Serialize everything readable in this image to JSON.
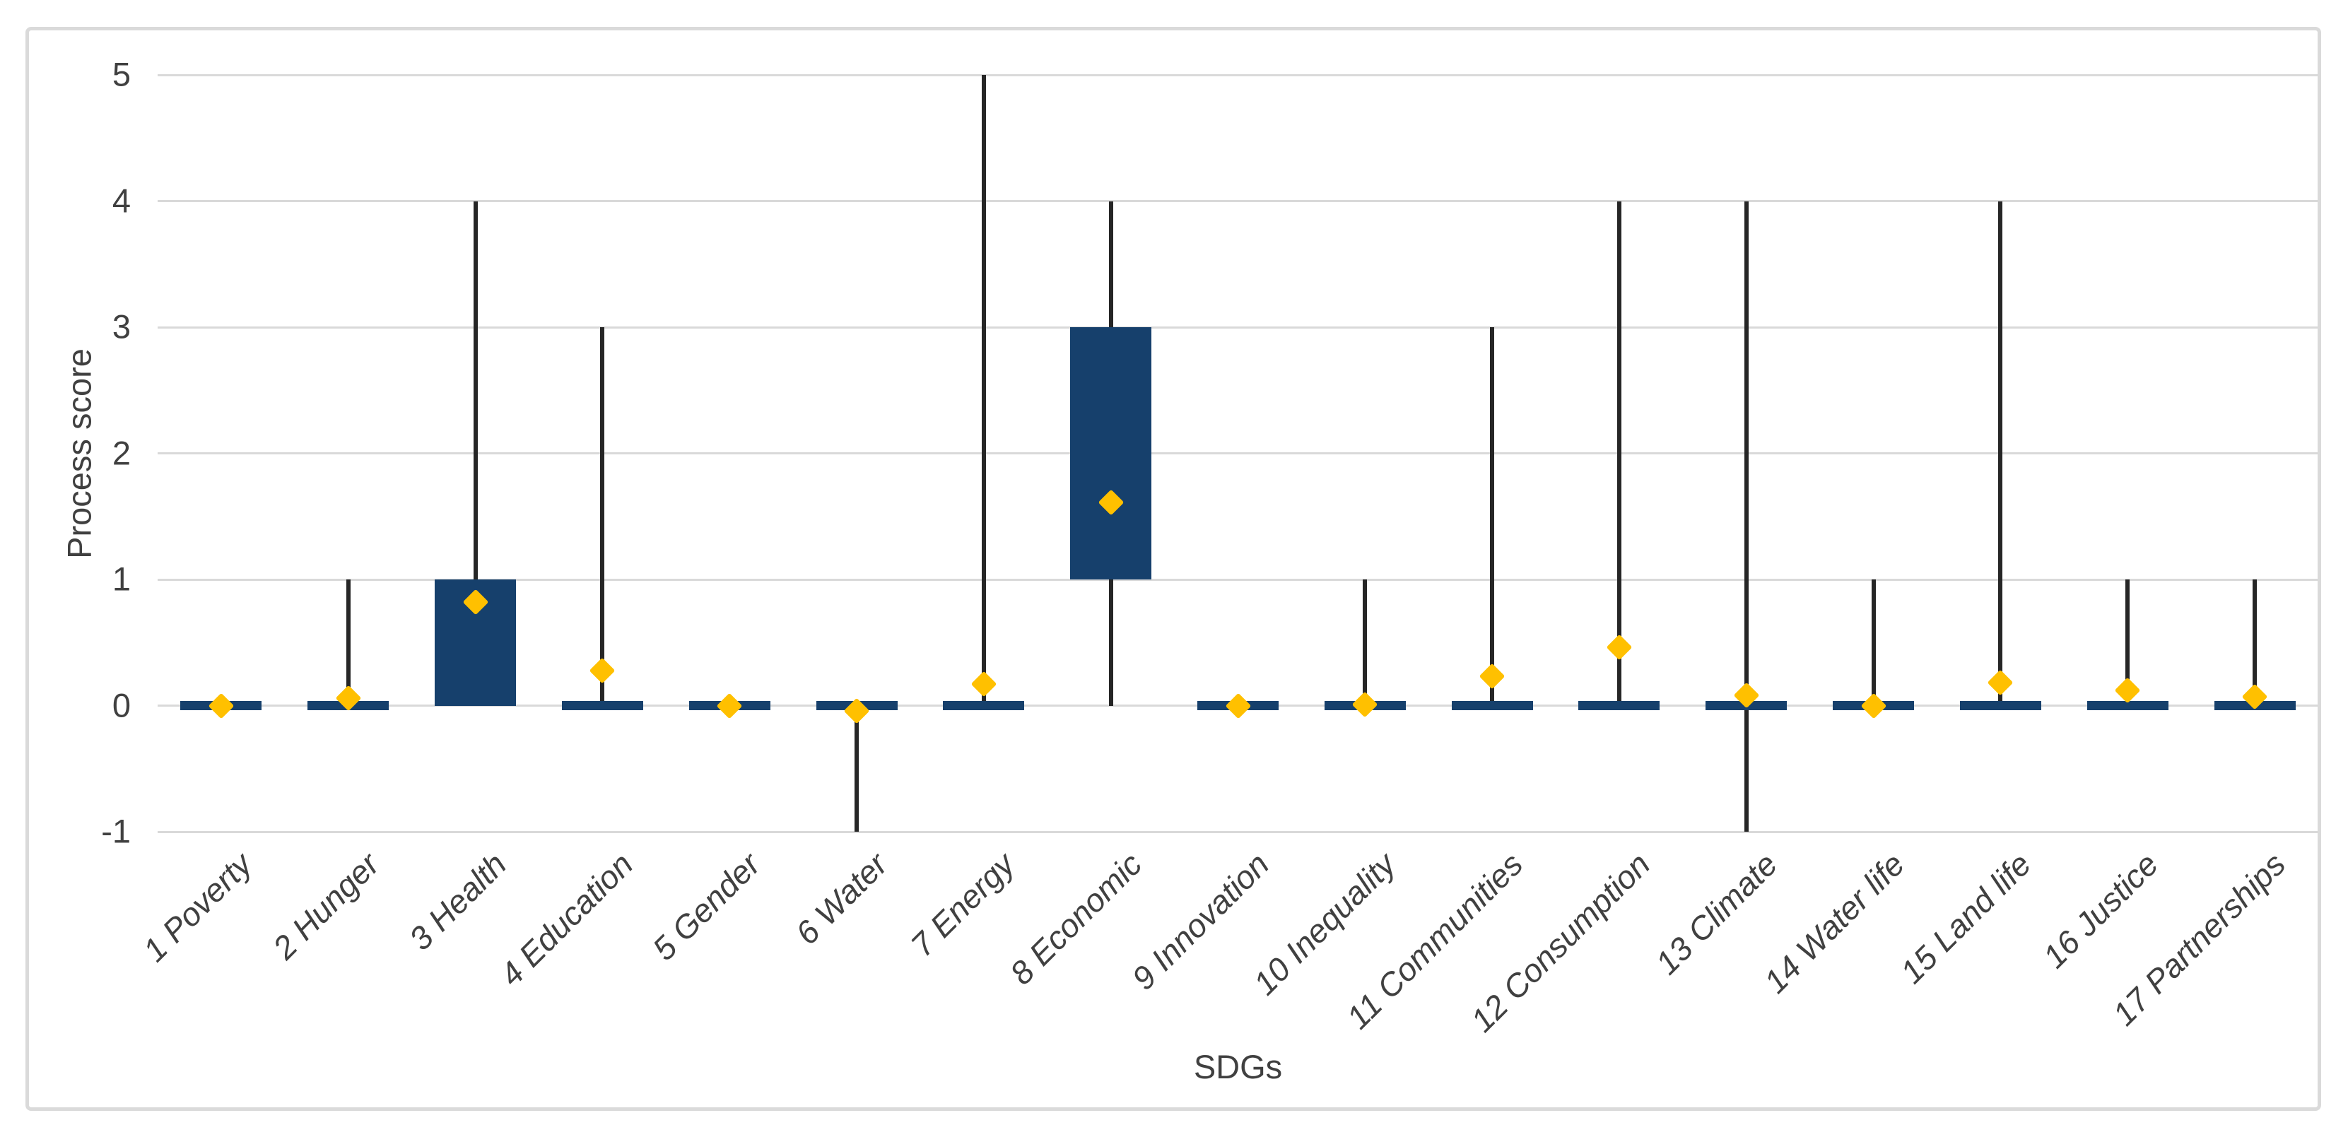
{
  "figure": {
    "background": "#ffffff",
    "frame_border_color": "#dadada"
  },
  "chart_data": {
    "type": "box",
    "title": "",
    "xlabel": "SDGs",
    "ylabel": "Process score",
    "ylim": [
      -1,
      5
    ],
    "yticks": [
      5,
      4,
      3,
      2,
      1,
      0,
      -1
    ],
    "grid": true,
    "legend": false,
    "colors": {
      "box_fill": "#16406c",
      "whisker": "#262626",
      "mean_marker": "#ffc000",
      "gridline": "#d9d9d9",
      "text": "#404040"
    },
    "categories": [
      "1 Poverty",
      "2 Hunger",
      "3 Health",
      "4 Education",
      "5 Gender",
      "6 Water",
      "7 Energy",
      "8 Economic",
      "9 Innovation",
      "10 Inequality",
      "11 Communities",
      "12 Consumption",
      "13 Climate",
      "14 Water life",
      "15 Land life",
      "16 Justice",
      "17 Partnerships"
    ],
    "series": [
      {
        "label": "1 Poverty",
        "min": 0,
        "q1": 0,
        "median": 0,
        "q3": 0,
        "max": 0,
        "mean": 0
      },
      {
        "label": "2 Hunger",
        "min": 0,
        "q1": 0,
        "median": 0,
        "q3": 0,
        "max": 1,
        "mean": 0.06
      },
      {
        "label": "3 Health",
        "min": 0,
        "q1": 0,
        "median": 0,
        "q3": 1,
        "max": 4,
        "mean": 0.82
      },
      {
        "label": "4 Education",
        "min": 0,
        "q1": 0,
        "median": 0,
        "q3": 0,
        "max": 3,
        "mean": 0.28
      },
      {
        "label": "5 Gender",
        "min": 0,
        "q1": 0,
        "median": 0,
        "q3": 0,
        "max": 0,
        "mean": 0
      },
      {
        "label": "6 Water",
        "min": -1,
        "q1": 0,
        "median": 0,
        "q3": 0,
        "max": 0,
        "mean": -0.04
      },
      {
        "label": "7 Energy",
        "min": 0,
        "q1": 0,
        "median": 0,
        "q3": 0,
        "max": 5,
        "mean": 0.17
      },
      {
        "label": "8 Economic",
        "min": 0,
        "q1": 1,
        "median": 1,
        "q3": 3,
        "max": 4,
        "mean": 1.61
      },
      {
        "label": "9 Innovation",
        "min": 0,
        "q1": 0,
        "median": 0,
        "q3": 0,
        "max": 0,
        "mean": 0
      },
      {
        "label": "10 Inequality",
        "min": 0,
        "q1": 0,
        "median": 0,
        "q3": 0,
        "max": 1,
        "mean": 0.01
      },
      {
        "label": "11 Communities",
        "min": 0,
        "q1": 0,
        "median": 0,
        "q3": 0,
        "max": 3,
        "mean": 0.23
      },
      {
        "label": "12 Consumption",
        "min": 0,
        "q1": 0,
        "median": 0,
        "q3": 0,
        "max": 4,
        "mean": 0.46
      },
      {
        "label": "13 Climate",
        "min": -1,
        "q1": 0,
        "median": 0,
        "q3": 0,
        "max": 4,
        "mean": 0.08
      },
      {
        "label": "14 Water life",
        "min": 0,
        "q1": 0,
        "median": 0,
        "q3": 0,
        "max": 1,
        "mean": 0
      },
      {
        "label": "15 Land life",
        "min": 0,
        "q1": 0,
        "median": 0,
        "q3": 0,
        "max": 4,
        "mean": 0.18
      },
      {
        "label": "16 Justice",
        "min": 0,
        "q1": 0,
        "median": 0,
        "q3": 0,
        "max": 1,
        "mean": 0.12
      },
      {
        "label": "17 Partnerships",
        "min": 0,
        "q1": 0,
        "median": 0,
        "q3": 0,
        "max": 1,
        "mean": 0.07
      }
    ]
  }
}
